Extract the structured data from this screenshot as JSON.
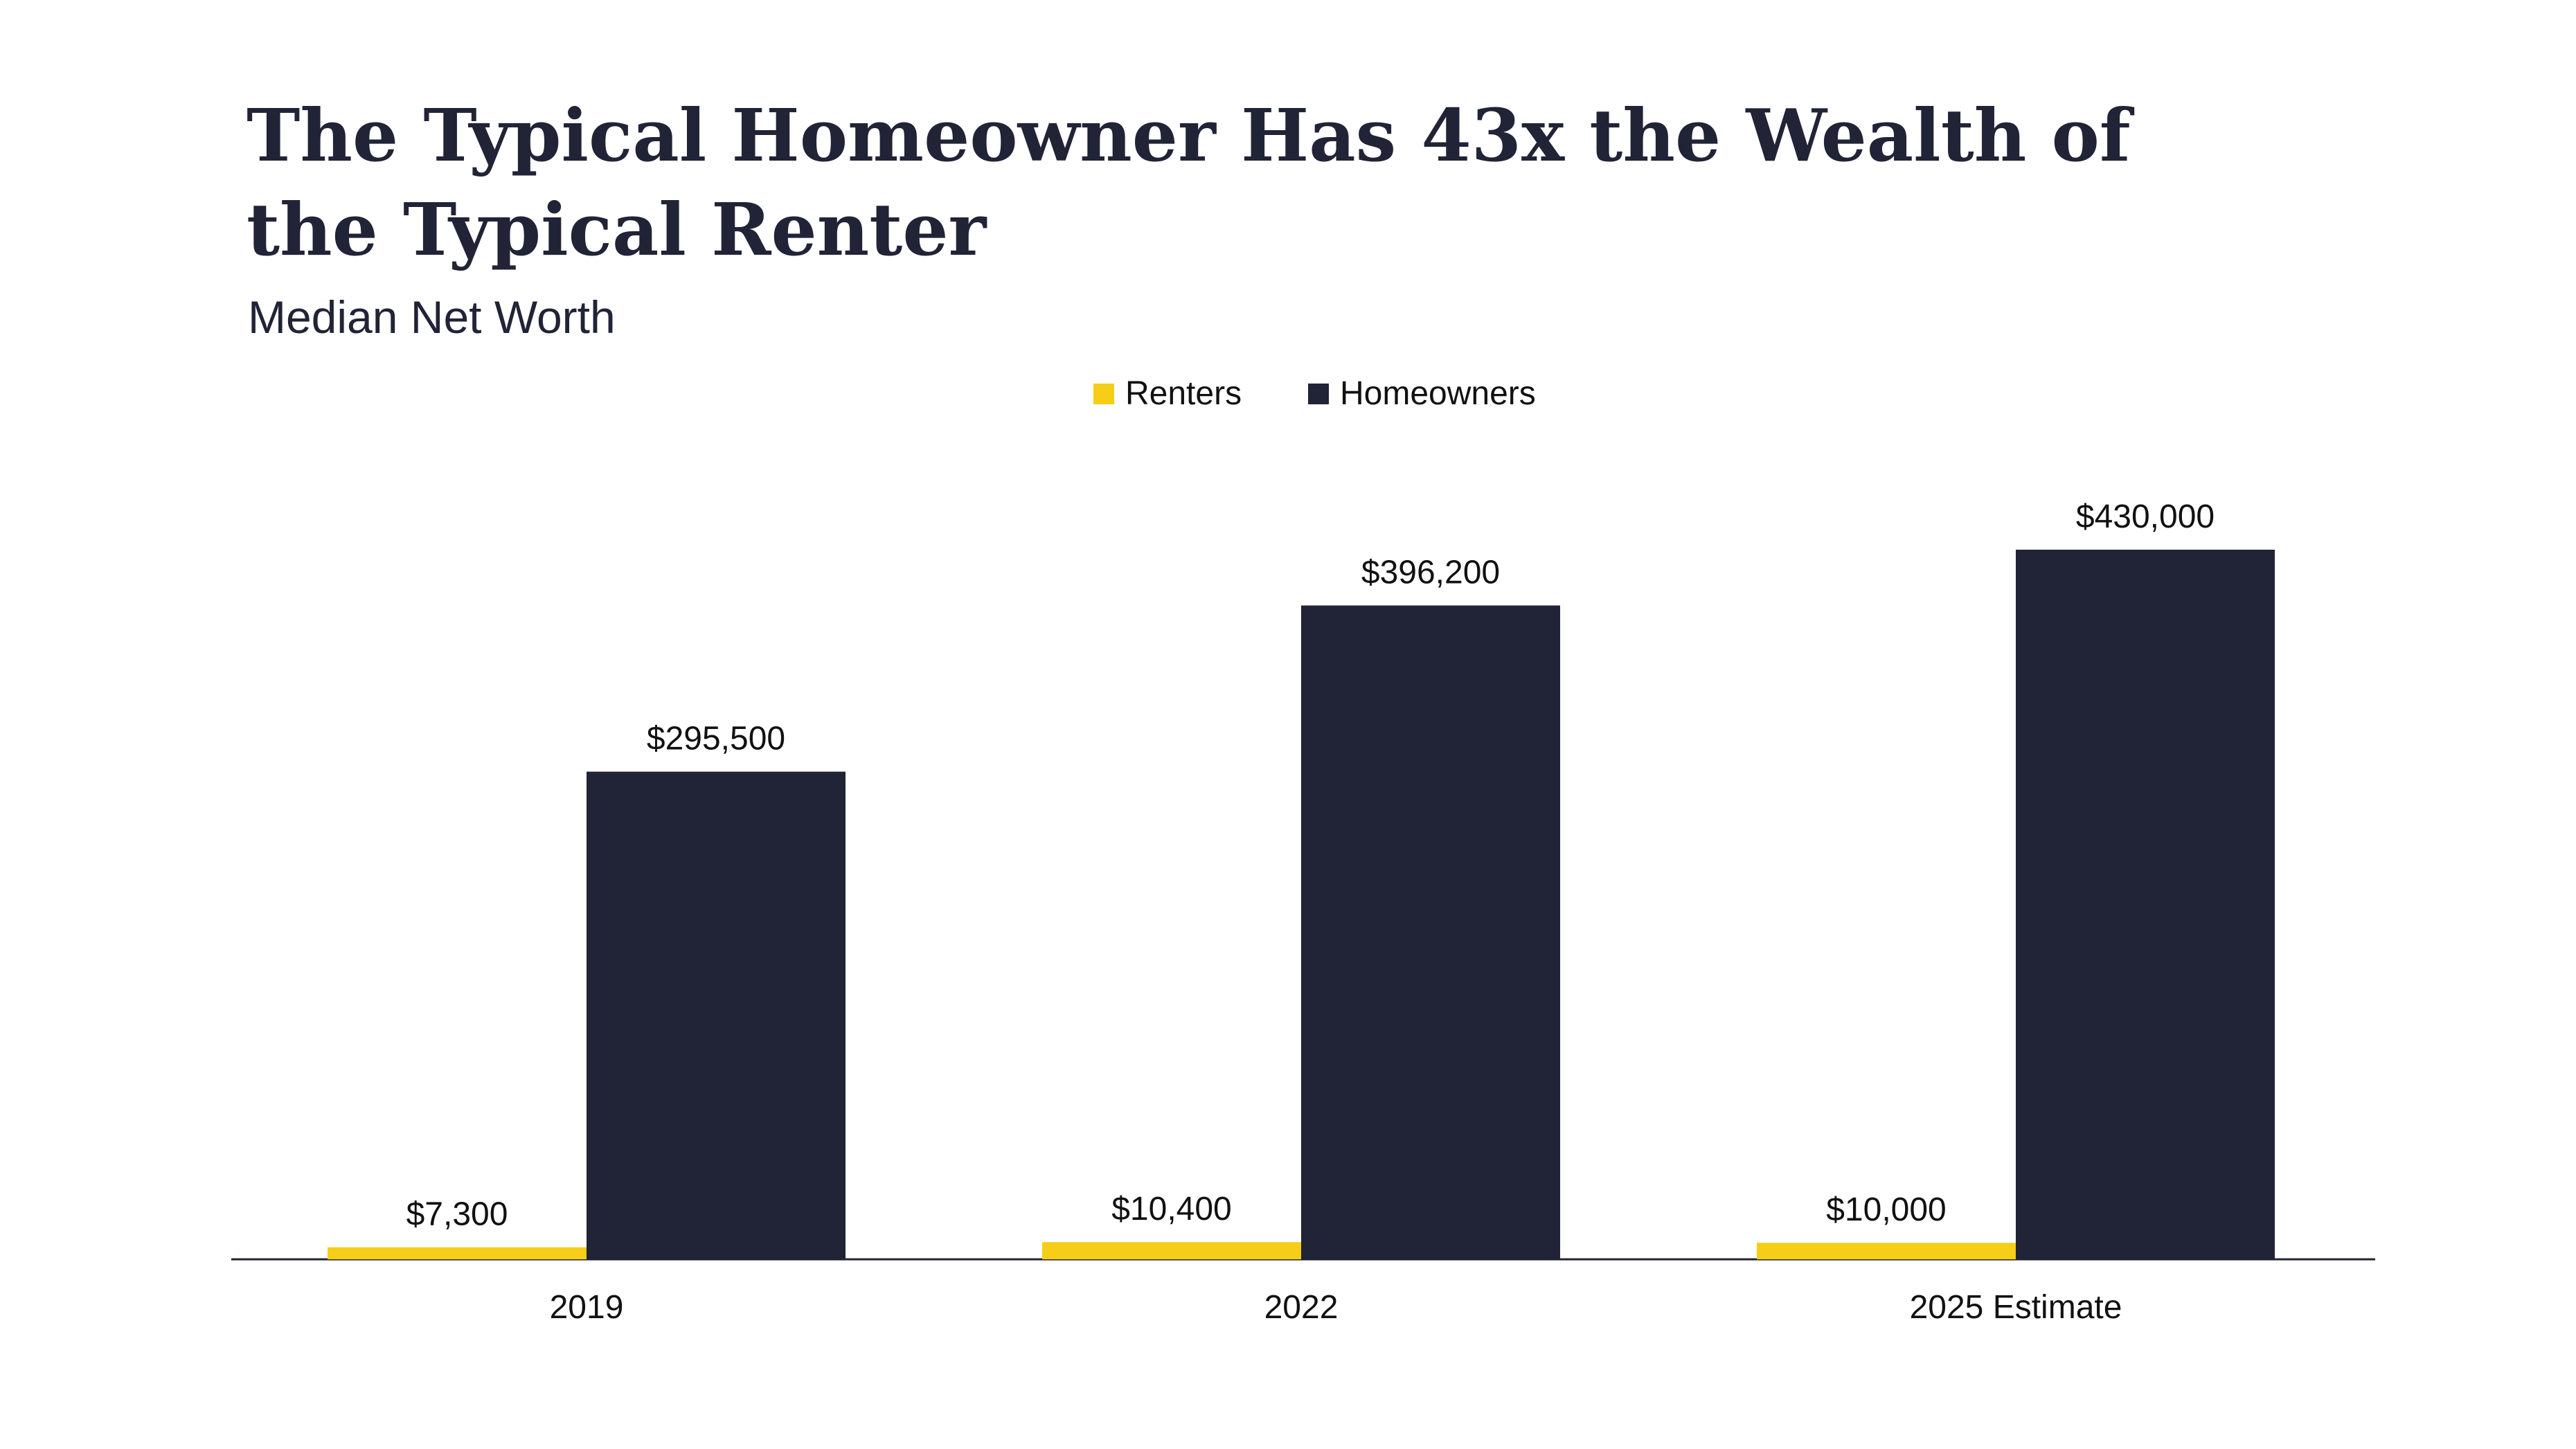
{
  "chart_data": {
    "type": "bar",
    "title": "The Typical Homeowner Has 43x the Wealth of the Typical Renter",
    "subtitle": "Median Net Worth",
    "categories": [
      "2019",
      "2022",
      "2025 Estimate"
    ],
    "series": [
      {
        "name": "Renters",
        "color": "#f6cd17",
        "values": [
          7300,
          10400,
          10000
        ],
        "value_labels": [
          "$7,300",
          "$10,400",
          "$10,000"
        ]
      },
      {
        "name": "Homeowners",
        "color": "#212336",
        "values": [
          295500,
          396200,
          430000
        ],
        "value_labels": [
          "$295,500",
          "$396,200",
          "$430,000"
        ]
      }
    ],
    "legend": "top"
  }
}
